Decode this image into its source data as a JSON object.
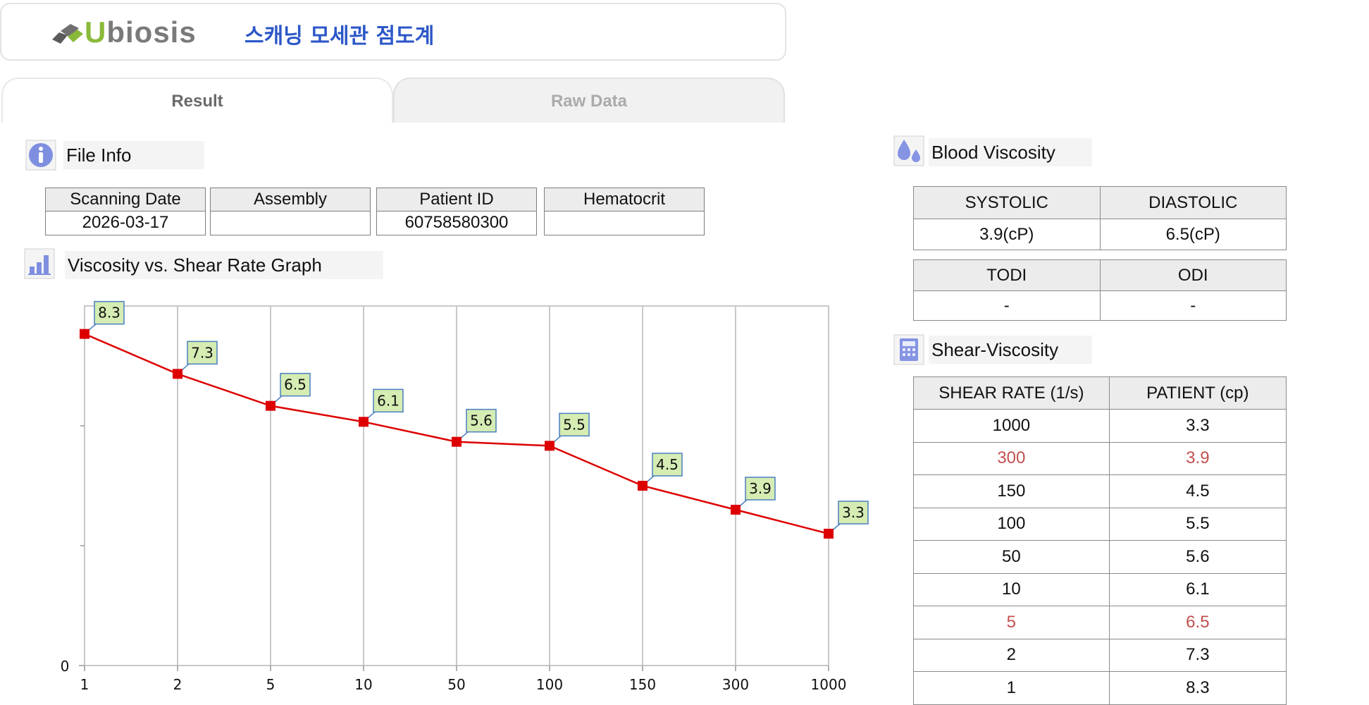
{
  "app": {
    "logo_text": "Ubiosis",
    "title": "스캐닝 모세관 점도계"
  },
  "tabs": [
    {
      "label": "Result",
      "active": true
    },
    {
      "label": "Raw Data",
      "active": false
    }
  ],
  "file_info": {
    "section_title": "File Info",
    "icon": "info-icon",
    "columns": [
      "Scanning Date",
      "Assembly",
      "Patient ID",
      "Hematocrit"
    ],
    "values": [
      "2026-03-17",
      "",
      "60758580300",
      ""
    ]
  },
  "graph": {
    "section_title": "Viscosity vs. Shear Rate Graph",
    "icon": "bar-chart-icon"
  },
  "chart_data": {
    "type": "line",
    "x": [
      "1",
      "2",
      "5",
      "10",
      "50",
      "100",
      "150",
      "300",
      "1000"
    ],
    "series": [
      {
        "values": [
          8.3,
          7.3,
          6.5,
          6.1,
          5.6,
          5.5,
          4.5,
          3.9,
          3.3
        ],
        "color": "#dd0000"
      }
    ],
    "data_labels": [
      "8.3",
      "7.3",
      "6.5",
      "6.1",
      "5.6",
      "5.5",
      "4.5",
      "3.9",
      "3.3"
    ],
    "y_tick_labels": [
      "0"
    ],
    "ylim": [
      0,
      9.0
    ],
    "grid": true,
    "label_bg": "#d5ecb3",
    "label_border": "#4a7fc0"
  },
  "blood_viscosity": {
    "section_title": "Blood Viscosity",
    "icon": "blood-drop-icon",
    "systolic_label": "SYSTOLIC",
    "diastolic_label": "DIASTOLIC",
    "systolic_value": "3.9(cP)",
    "diastolic_value": "6.5(cP)",
    "todi_label": "TODI",
    "odi_label": "ODI",
    "todi_value": "-",
    "odi_value": "-"
  },
  "shear_viscosity": {
    "section_title": "Shear-Viscosity",
    "icon": "calculator-icon",
    "col_shear": "SHEAR RATE (1/s)",
    "col_patient": "PATIENT (cp)",
    "rows": [
      {
        "shear": "1000",
        "patient": "3.3",
        "highlight": false
      },
      {
        "shear": "300",
        "patient": "3.9",
        "highlight": true
      },
      {
        "shear": "150",
        "patient": "4.5",
        "highlight": false
      },
      {
        "shear": "100",
        "patient": "5.5",
        "highlight": false
      },
      {
        "shear": "50",
        "patient": "5.6",
        "highlight": false
      },
      {
        "shear": "10",
        "patient": "6.1",
        "highlight": false
      },
      {
        "shear": "5",
        "patient": "6.5",
        "highlight": true
      },
      {
        "shear": "2",
        "patient": "7.3",
        "highlight": false
      },
      {
        "shear": "1",
        "patient": "8.3",
        "highlight": false
      }
    ],
    "highlight_color": "#c25050"
  }
}
